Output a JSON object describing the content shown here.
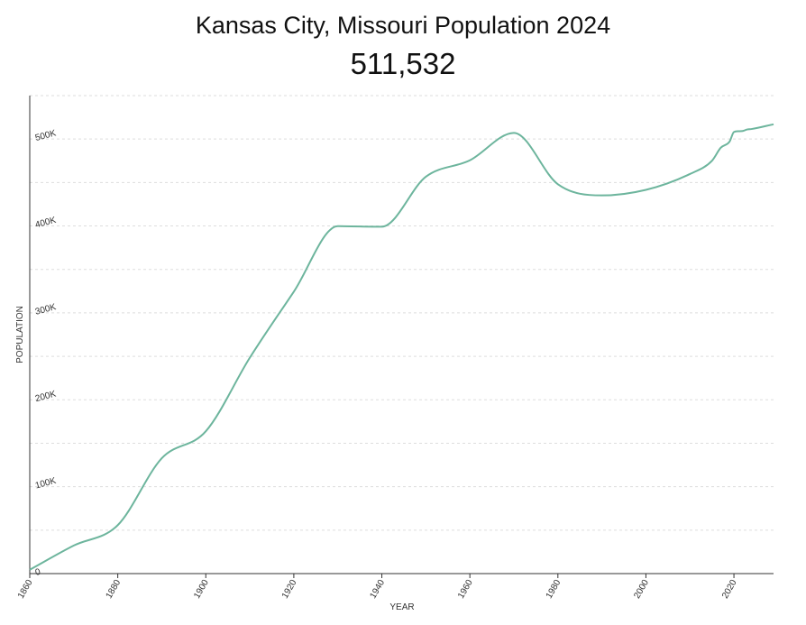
{
  "chart_data": {
    "type": "line",
    "title": "Kansas City, Missouri Population 2024",
    "subtitle": "511,532",
    "xlabel": "YEAR",
    "ylabel": "POPULATION",
    "xlim": [
      1860,
      2029
    ],
    "ylim": [
      0,
      550000
    ],
    "grid": true,
    "legend": "none",
    "colors": {
      "line": "#6db59d",
      "grid": "#dddddd",
      "axis": "#333333"
    },
    "x_ticks": [
      "1860",
      "1880",
      "1900",
      "1920",
      "1940",
      "1960",
      "1980",
      "2000",
      "2020"
    ],
    "x_tick_values": [
      1860,
      1880,
      1900,
      1920,
      1940,
      1960,
      1980,
      2000,
      2020
    ],
    "y_ticks": [
      "0",
      "100K",
      "200K",
      "300K",
      "400K",
      "500K"
    ],
    "y_tick_values": [
      0,
      100000,
      200000,
      300000,
      400000,
      500000
    ],
    "series": [
      {
        "x": [
          1860,
          1870,
          1880,
          1890,
          1900,
          1910,
          1920,
          1930,
          1940,
          1950,
          1960,
          1970,
          1980,
          1990,
          2000,
          2010,
          2015,
          2017,
          2019,
          2020,
          2021,
          2022,
          2023,
          2024,
          2029
        ],
        "values": [
          4418,
          32260,
          55785,
          132716,
          163752,
          248381,
          324410,
          399746,
          399178,
          456622,
          475539,
          507087,
          448028,
          435146,
          441545,
          459787,
          475000,
          490000,
          497000,
          508090,
          509000,
          509297,
          511000,
          511532,
          517000
        ]
      }
    ]
  }
}
